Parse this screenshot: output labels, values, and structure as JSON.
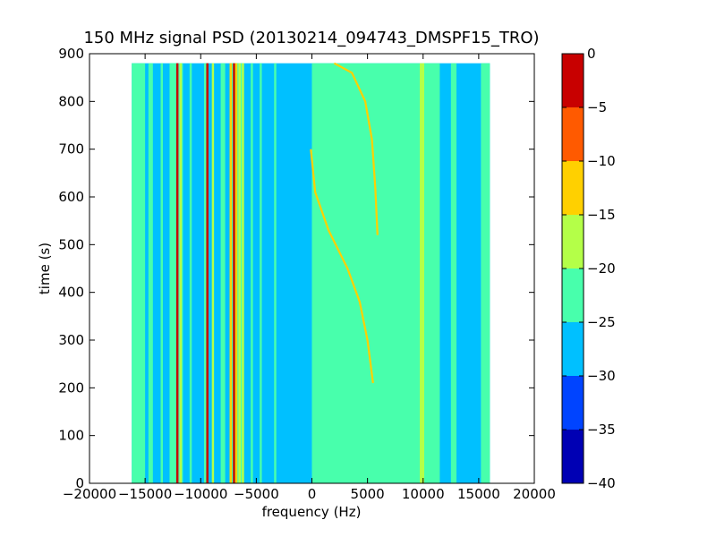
{
  "chart_data": {
    "type": "heatmap",
    "title": "150 MHz signal PSD (20130214_094743_DMSPF15_TRO)",
    "xlabel": "frequency (Hz)",
    "ylabel": "time (s)",
    "xlim": [
      -20000,
      20000
    ],
    "ylim": [
      0,
      900
    ],
    "xticks": [
      -20000,
      -15000,
      -10000,
      -5000,
      0,
      5000,
      10000,
      15000,
      20000
    ],
    "xtick_labels": [
      "−20000",
      "−15000",
      "−10000",
      "−5000",
      "0",
      "5000",
      "10000",
      "15000",
      "20000"
    ],
    "yticks": [
      0,
      100,
      200,
      300,
      400,
      500,
      600,
      700,
      800,
      900
    ],
    "ytick_labels": [
      "0",
      "100",
      "200",
      "300",
      "400",
      "500",
      "600",
      "700",
      "800",
      "900"
    ],
    "data_extent": {
      "x": [
        -16200,
        16000
      ],
      "y": [
        0,
        880
      ]
    },
    "colorbar": {
      "levels": [
        -40,
        -35,
        -30,
        -25,
        -20,
        -15,
        -10,
        -5,
        0
      ],
      "tick_labels": [
        "−40",
        "−35",
        "−30",
        "−25",
        "−20",
        "−15",
        "−10",
        "−5",
        "0"
      ],
      "colors": [
        "#0000b4",
        "#0044ff",
        "#00c0ff",
        "#48ffac",
        "#b4ff48",
        "#ffd000",
        "#ff5a00",
        "#c80000"
      ]
    },
    "background_level": -25,
    "vertical_bands": [
      {
        "x": [
          -16200,
          -15000
        ],
        "level": -20
      },
      {
        "x": [
          -14700,
          -14300
        ],
        "level": -20
      },
      {
        "x": [
          -13600,
          -13400
        ],
        "level": -20
      },
      {
        "x": [
          -12800,
          -11600
        ],
        "level": -20
      },
      {
        "x": [
          -11000,
          -10800
        ],
        "level": -20
      },
      {
        "x": [
          -9700,
          -9300
        ],
        "level": -20
      },
      {
        "x": [
          -8200,
          -7800
        ],
        "level": -20
      },
      {
        "x": [
          -7400,
          -6200
        ],
        "level": -20
      },
      {
        "x": [
          -5500,
          -5300
        ],
        "level": -20
      },
      {
        "x": [
          -4700,
          -4500
        ],
        "level": -20
      },
      {
        "x": [
          -3400,
          -3200
        ],
        "level": -20
      },
      {
        "x": [
          0,
          9700
        ],
        "level": -20
      },
      {
        "x": [
          10100,
          11500
        ],
        "level": -20
      },
      {
        "x": [
          12500,
          13000
        ],
        "level": -20
      },
      {
        "x": [
          15200,
          16000
        ],
        "level": -20
      }
    ],
    "vertical_lines": [
      {
        "x": -12100,
        "level": 0
      },
      {
        "x": -11800,
        "level": -15
      },
      {
        "x": -9400,
        "level": 0
      },
      {
        "x": -8900,
        "level": -15
      },
      {
        "x": -7300,
        "level": -10
      },
      {
        "x": -7000,
        "level": 0
      },
      {
        "x": -6800,
        "level": -10
      },
      {
        "x": -6500,
        "level": -15
      },
      {
        "x": -6200,
        "level": -15
      },
      {
        "x": 9800,
        "level": -15
      },
      {
        "x": 10000,
        "level": -15
      }
    ],
    "tracks": [
      {
        "level": -10,
        "points": [
          [
            5900,
            520
          ],
          [
            5700,
            620
          ],
          [
            5400,
            720
          ],
          [
            4800,
            800
          ],
          [
            3600,
            860
          ],
          [
            2000,
            880
          ]
        ]
      },
      {
        "level": -10,
        "points": [
          [
            5500,
            210
          ],
          [
            5000,
            300
          ],
          [
            4300,
            380
          ],
          [
            3200,
            450
          ],
          [
            1500,
            530
          ],
          [
            300,
            610
          ],
          [
            -100,
            700
          ]
        ]
      }
    ]
  }
}
